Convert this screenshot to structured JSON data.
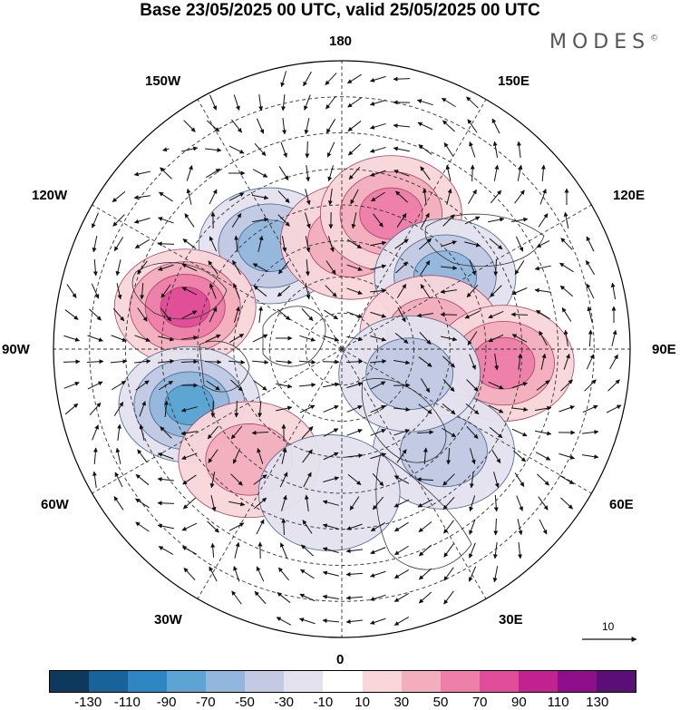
{
  "title": "Base 23/05/2025 00 UTC, valid 25/05/2025 00 UTC",
  "brand": {
    "text": "MODES",
    "mark": "©"
  },
  "longitude_labels": {
    "top": "180",
    "bottom": "0",
    "left": "90W",
    "right": "90E",
    "upper_left_1": "150W",
    "upper_left_2": "120W",
    "upper_right_1": "150E",
    "upper_right_2": "120E",
    "lower_left_1": "60W",
    "lower_left_2": "30W",
    "lower_right_1": "60E",
    "lower_right_2": "30E"
  },
  "reference_vector": {
    "label": "10"
  },
  "colorbar": {
    "colors": [
      "#0d3a5c",
      "#17639a",
      "#2d86c2",
      "#5ba4d3",
      "#93b7dc",
      "#c2cae4",
      "#e4e2ef",
      "#ffffff",
      "#f8d6da",
      "#f3aebd",
      "#ee7fa9",
      "#e24d99",
      "#c1228f",
      "#8f0e89",
      "#5a0f77"
    ],
    "tick_labels": [
      "-130",
      "-110",
      "-90",
      "-70",
      "-50",
      "-30",
      "-10",
      "10",
      "30",
      "50",
      "70",
      "90",
      "110",
      "130"
    ]
  },
  "anomaly_centers": [
    {
      "longitude_label": "145W",
      "latitude": 55,
      "value": -75
    },
    {
      "longitude_label": "175E",
      "latitude": 60,
      "value": 40
    },
    {
      "longitude_label": "160E",
      "latitude": 50,
      "value": 70
    },
    {
      "longitude_label": "125E",
      "latitude": 55,
      "value": -75
    },
    {
      "longitude_label": "100E",
      "latitude": 65,
      "value": 50
    },
    {
      "longitude_label": "85E",
      "latitude": 45,
      "value": 70
    },
    {
      "longitude_label": "105W",
      "latitude": 45,
      "value": 90
    },
    {
      "longitude_label": "70W",
      "latitude": 45,
      "value": -85
    },
    {
      "longitude_label": "40W",
      "latitude": 50,
      "value": 40
    },
    {
      "longitude_label": "45E",
      "latitude": 50,
      "value": -45
    },
    {
      "longitude_label": "5W",
      "latitude": 50,
      "value": -30
    },
    {
      "longitude_label": "70E",
      "latitude": 70,
      "value": -40
    }
  ]
}
